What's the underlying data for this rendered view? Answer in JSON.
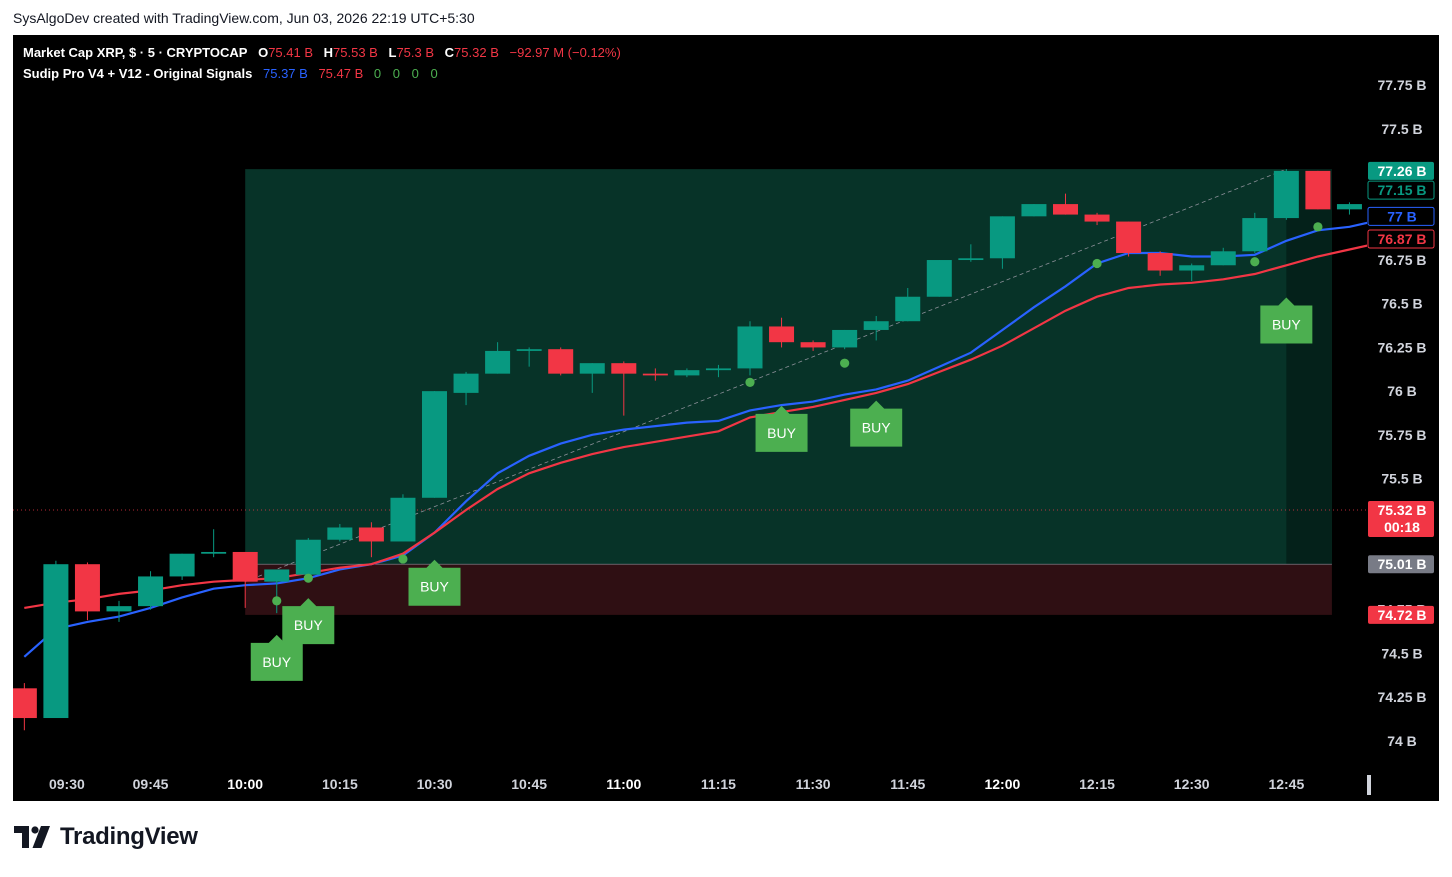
{
  "caption": "SysAlgoDev created with TradingView.com, Jun 03, 2026 22:19 UTC+5:30",
  "brand": {
    "name": "TradingView",
    "logo_icon": "tradingview-logo-icon"
  },
  "legend": {
    "symbol": "Market Cap XRP, $ · 5 · CRYPTOCAP",
    "open_label": "O",
    "open": "75.41 B",
    "high_label": "H",
    "high": "75.53 B",
    "low_label": "L",
    "low": "75.3 B",
    "close_label": "C",
    "close": "75.32 B",
    "change": "−92.97 M (−0.12%)",
    "indicator": "Sudip Pro V4 + V12 - Original Signals",
    "ind_v1": "75.37 B",
    "ind_v2": "75.47 B",
    "ind_zeros": [
      "0",
      "0",
      "0",
      "0"
    ]
  },
  "colors": {
    "up": "#089981",
    "down": "#f23645",
    "fast_line": "#2962ff",
    "slow_line": "#f23645",
    "signal": "#4caf50",
    "zone_up": "#073328",
    "zone_down": "#2f0f13",
    "bg": "#000000"
  },
  "chart_data": {
    "type": "candlestick",
    "interval": "5",
    "ylim": [
      73.97,
      77.9
    ],
    "y_ticks": [
      "77.75",
      "77.5",
      "77.25",
      "77",
      "76.75",
      "76.5",
      "76.25",
      "76",
      "75.75",
      "75.5",
      "75.25",
      "75",
      "74.75",
      "74.5",
      "74.25",
      "74"
    ],
    "y_tick_labels": [
      "77.75 B",
      "77.5 B",
      "77.25 B",
      "77 B",
      "76.75 B",
      "76.5 B",
      "76.25 B",
      "76 B",
      "75.75 B",
      "75.5 B",
      "75.25 B",
      "75 B",
      "74.75 B",
      "74.5 B",
      "74.25 B",
      "74 B"
    ],
    "x_ticks": [
      {
        "time": "09:30",
        "bold": false
      },
      {
        "time": "09:45",
        "bold": false
      },
      {
        "time": "10:00",
        "bold": true
      },
      {
        "time": "10:15",
        "bold": false
      },
      {
        "time": "10:30",
        "bold": false
      },
      {
        "time": "10:45",
        "bold": false
      },
      {
        "time": "11:00",
        "bold": true
      },
      {
        "time": "11:15",
        "bold": false
      },
      {
        "time": "11:30",
        "bold": false
      },
      {
        "time": "11:45",
        "bold": false
      },
      {
        "time": "12:00",
        "bold": true
      },
      {
        "time": "12:15",
        "bold": false
      },
      {
        "time": "12:30",
        "bold": false
      },
      {
        "time": "12:45",
        "bold": false
      }
    ],
    "candles": [
      {
        "t": "09:25",
        "o": 74.3,
        "h": 74.33,
        "l": 74.06,
        "c": 74.13
      },
      {
        "t": "09:30",
        "o": 74.13,
        "h": 75.03,
        "l": 74.13,
        "c": 75.01
      },
      {
        "t": "09:35",
        "o": 75.01,
        "h": 75.02,
        "l": 74.69,
        "c": 74.74
      },
      {
        "t": "09:40",
        "o": 74.74,
        "h": 74.8,
        "l": 74.68,
        "c": 74.77
      },
      {
        "t": "09:45",
        "o": 74.77,
        "h": 74.97,
        "l": 74.75,
        "c": 74.94
      },
      {
        "t": "09:50",
        "o": 74.94,
        "h": 75.07,
        "l": 74.92,
        "c": 75.07
      },
      {
        "t": "09:55",
        "o": 75.07,
        "h": 75.21,
        "l": 75.05,
        "c": 75.08
      },
      {
        "t": "10:00",
        "o": 75.08,
        "h": 75.08,
        "l": 74.76,
        "c": 74.91
      },
      {
        "t": "10:05",
        "o": 74.91,
        "h": 74.97,
        "l": 74.73,
        "c": 74.98
      },
      {
        "t": "10:10",
        "o": 74.95,
        "h": 75.16,
        "l": 74.95,
        "c": 75.15
      },
      {
        "t": "10:15",
        "o": 75.15,
        "h": 75.24,
        "l": 75.14,
        "c": 75.22
      },
      {
        "t": "10:20",
        "o": 75.22,
        "h": 75.25,
        "l": 75.05,
        "c": 75.14
      },
      {
        "t": "10:25",
        "o": 75.14,
        "h": 75.41,
        "l": 75.14,
        "c": 75.39
      },
      {
        "t": "10:30",
        "o": 75.39,
        "h": 76.0,
        "l": 75.39,
        "c": 76.0
      },
      {
        "t": "10:35",
        "o": 75.99,
        "h": 76.11,
        "l": 75.92,
        "c": 76.1
      },
      {
        "t": "10:40",
        "o": 76.1,
        "h": 76.28,
        "l": 76.1,
        "c": 76.23
      },
      {
        "t": "10:45",
        "o": 76.23,
        "h": 76.25,
        "l": 76.14,
        "c": 76.24
      },
      {
        "t": "10:50",
        "o": 76.24,
        "h": 76.25,
        "l": 76.09,
        "c": 76.1
      },
      {
        "t": "10:55",
        "o": 76.1,
        "h": 76.16,
        "l": 75.99,
        "c": 76.16
      },
      {
        "t": "11:00",
        "o": 76.16,
        "h": 76.17,
        "l": 75.86,
        "c": 76.1
      },
      {
        "t": "11:05",
        "o": 76.1,
        "h": 76.13,
        "l": 76.06,
        "c": 76.09
      },
      {
        "t": "11:10",
        "o": 76.09,
        "h": 76.13,
        "l": 76.08,
        "c": 76.12
      },
      {
        "t": "11:15",
        "o": 76.12,
        "h": 76.15,
        "l": 76.08,
        "c": 76.13
      },
      {
        "t": "11:20",
        "o": 76.13,
        "h": 76.4,
        "l": 76.09,
        "c": 76.37
      },
      {
        "t": "11:25",
        "o": 76.37,
        "h": 76.42,
        "l": 76.25,
        "c": 76.28
      },
      {
        "t": "11:30",
        "o": 76.28,
        "h": 76.29,
        "l": 76.23,
        "c": 76.25
      },
      {
        "t": "11:35",
        "o": 76.25,
        "h": 76.35,
        "l": 76.24,
        "c": 76.35
      },
      {
        "t": "11:40",
        "o": 76.35,
        "h": 76.43,
        "l": 76.29,
        "c": 76.4
      },
      {
        "t": "11:45",
        "o": 76.4,
        "h": 76.59,
        "l": 76.4,
        "c": 76.54
      },
      {
        "t": "11:50",
        "o": 76.54,
        "h": 76.75,
        "l": 76.54,
        "c": 76.75
      },
      {
        "t": "11:55",
        "o": 76.75,
        "h": 76.84,
        "l": 76.74,
        "c": 76.76
      },
      {
        "t": "12:00",
        "o": 76.76,
        "h": 77.0,
        "l": 76.7,
        "c": 77.0
      },
      {
        "t": "12:05",
        "o": 77.0,
        "h": 77.07,
        "l": 77.0,
        "c": 77.07
      },
      {
        "t": "12:10",
        "o": 77.07,
        "h": 77.13,
        "l": 77.01,
        "c": 77.01
      },
      {
        "t": "12:15",
        "o": 77.01,
        "h": 77.02,
        "l": 76.95,
        "c": 76.97
      },
      {
        "t": "12:20",
        "o": 76.97,
        "h": 76.97,
        "l": 76.77,
        "c": 76.79
      },
      {
        "t": "12:25",
        "o": 76.79,
        "h": 76.8,
        "l": 76.66,
        "c": 76.69
      },
      {
        "t": "12:30",
        "o": 76.69,
        "h": 76.73,
        "l": 76.63,
        "c": 76.72
      },
      {
        "t": "12:35",
        "o": 76.72,
        "h": 76.82,
        "l": 76.72,
        "c": 76.8
      },
      {
        "t": "12:40",
        "o": 76.8,
        "h": 77.02,
        "l": 76.79,
        "c": 76.99
      },
      {
        "t": "12:45",
        "o": 76.99,
        "h": 77.27,
        "l": 76.98,
        "c": 77.26
      },
      {
        "t": "12:50",
        "o": 77.26,
        "h": 77.26,
        "l": 77.04,
        "c": 77.04
      },
      {
        "t": "12:55",
        "o": 77.04,
        "h": 77.08,
        "l": 77.01,
        "c": 77.07
      },
      {
        "t": "13:00",
        "o": 77.07,
        "h": 77.09,
        "l": 77.06,
        "c": 77.07
      }
    ],
    "series": [
      {
        "color": "#2962ff",
        "values": [
          74.48,
          74.64,
          74.68,
          74.71,
          74.76,
          74.82,
          74.87,
          74.89,
          74.9,
          74.93,
          74.98,
          75.01,
          75.06,
          75.19,
          75.37,
          75.53,
          75.63,
          75.7,
          75.75,
          75.78,
          75.8,
          75.82,
          75.83,
          75.89,
          75.92,
          75.94,
          75.98,
          76.01,
          76.06,
          76.14,
          76.22,
          76.35,
          76.48,
          76.6,
          76.73,
          76.79,
          76.79,
          76.77,
          76.77,
          76.78,
          76.86,
          76.92,
          76.94,
          76.98
        ]
      },
      {
        "color": "#f23645",
        "values": [
          74.76,
          74.79,
          74.81,
          74.84,
          74.86,
          74.89,
          74.91,
          74.92,
          74.93,
          74.96,
          74.99,
          75.01,
          75.07,
          75.19,
          75.32,
          75.44,
          75.53,
          75.59,
          75.64,
          75.68,
          75.71,
          75.74,
          75.77,
          75.85,
          75.88,
          75.91,
          75.95,
          75.99,
          76.04,
          76.11,
          76.18,
          76.26,
          76.36,
          76.46,
          76.54,
          76.59,
          76.61,
          76.62,
          76.64,
          76.67,
          76.72,
          76.77,
          76.81,
          76.85
        ]
      }
    ],
    "dots": [
      {
        "t": "10:05",
        "y": 74.8
      },
      {
        "t": "10:10",
        "y": 74.93
      },
      {
        "t": "10:25",
        "y": 75.04
      },
      {
        "t": "11:20",
        "y": 76.05
      },
      {
        "t": "11:35",
        "y": 76.16
      },
      {
        "t": "12:15",
        "y": 76.73
      },
      {
        "t": "12:40",
        "y": 76.74
      },
      {
        "t": "12:50",
        "y": 76.94
      }
    ],
    "buy_signals": [
      {
        "t": "10:05",
        "label": "BUY",
        "y": 74.56
      },
      {
        "t": "10:10",
        "label": "BUY",
        "y": 74.77
      },
      {
        "t": "10:30",
        "label": "BUY",
        "y": 74.99
      },
      {
        "t": "11:25",
        "label": "BUY",
        "y": 75.87
      },
      {
        "t": "11:40",
        "label": "BUY",
        "y": 75.9
      },
      {
        "t": "12:45",
        "label": "BUY",
        "y": 76.49
      }
    ],
    "zones": [
      {
        "type": "profit",
        "t_start": "10:00",
        "t_end": "12:50",
        "y_top": 77.27,
        "y_bottom": 75.01
      },
      {
        "type": "stop",
        "t_start": "10:00",
        "t_end": "12:50",
        "y_top": 75.01,
        "y_bottom": 74.72
      }
    ],
    "trend_line": {
      "t_start": "10:00",
      "y_start": 74.91,
      "t_end": "12:45",
      "y_end": 77.27
    },
    "price_tags": [
      {
        "label": "77.26 B",
        "y": 77.26,
        "style": "solid-green"
      },
      {
        "label": "77.15 B",
        "y": 77.15,
        "style": "outline-green"
      },
      {
        "label": "77 B",
        "y": 77.0,
        "style": "outline-blue"
      },
      {
        "label": "76.87 B",
        "y": 76.87,
        "style": "outline-red"
      },
      {
        "label": "75.32 B",
        "sublabel": "00:18",
        "y": 75.32,
        "style": "solid-red"
      },
      {
        "label": "75.01 B",
        "y": 75.01,
        "style": "solid-gray"
      },
      {
        "label": "74.72 B",
        "y": 74.72,
        "style": "solid-red"
      }
    ],
    "current_price": 75.32
  }
}
